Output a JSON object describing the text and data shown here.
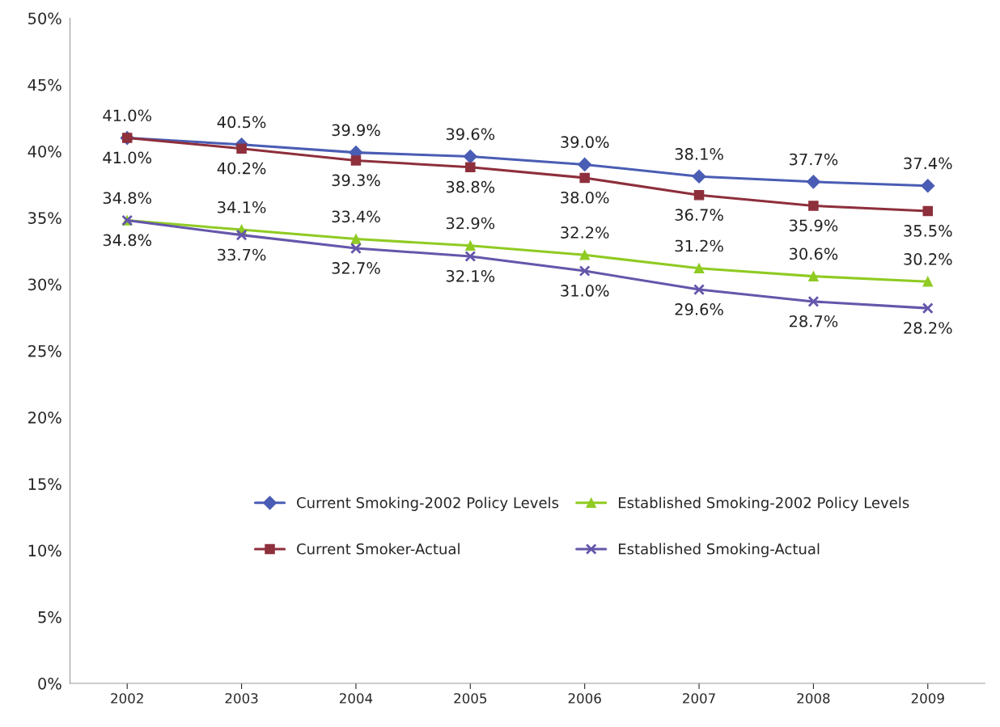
{
  "chart_data": {
    "type": "line",
    "categories": [
      "2002",
      "2003",
      "2004",
      "2005",
      "2006",
      "2007",
      "2008",
      "2009"
    ],
    "series": [
      {
        "name": "Current Smoking-2002 Policy Levels",
        "color": "#4a5db4",
        "marker": "diamond",
        "values": [
          41.0,
          40.5,
          39.9,
          39.6,
          39.0,
          38.1,
          37.7,
          37.4
        ],
        "value_labels": [
          "41.0%",
          "40.5%",
          "39.9%",
          "39.6%",
          "39.0%",
          "38.1%",
          "37.7%",
          "37.4%"
        ]
      },
      {
        "name": "Current Smoker-Actual",
        "color": "#8e2f3c",
        "marker": "square",
        "values": [
          41.0,
          40.2,
          39.3,
          38.8,
          38.0,
          36.7,
          35.9,
          35.5
        ],
        "value_labels": [
          "41.0%",
          "40.2%",
          "39.3%",
          "38.8%",
          "38.0%",
          "36.7%",
          "35.9%",
          "35.5%"
        ]
      },
      {
        "name": "Established Smoking-2002 Policy Levels",
        "color": "#8fcb22",
        "marker": "triangle",
        "values": [
          34.8,
          34.1,
          33.4,
          32.9,
          32.2,
          31.2,
          30.6,
          30.2
        ],
        "value_labels": [
          "34.8%",
          "34.1%",
          "33.4%",
          "32.9%",
          "32.2%",
          "31.2%",
          "30.6%",
          "30.2%"
        ]
      },
      {
        "name": "Established Smoking-Actual",
        "color": "#6556ab",
        "marker": "cross",
        "values": [
          34.8,
          33.7,
          32.7,
          32.1,
          31.0,
          29.6,
          28.7,
          28.2
        ],
        "value_labels": [
          "34.8%",
          "33.7%",
          "32.7%",
          "32.1%",
          "31.0%",
          "29.6%",
          "28.7%",
          "28.2%"
        ]
      }
    ],
    "ylim": [
      0,
      50
    ],
    "yticks": [
      {
        "value": 0,
        "label": "0%"
      },
      {
        "value": 5,
        "label": "5%"
      },
      {
        "value": 10,
        "label": "10%"
      },
      {
        "value": 15,
        "label": "15%"
      },
      {
        "value": 20,
        "label": "20%"
      },
      {
        "value": 25,
        "label": "25%"
      },
      {
        "value": 30,
        "label": "30%"
      },
      {
        "value": 35,
        "label": "35%"
      },
      {
        "value": 40,
        "label": "40%"
      },
      {
        "value": 45,
        "label": "45%"
      },
      {
        "value": 50,
        "label": "50%"
      }
    ],
    "grid": false,
    "legend": "bottom",
    "line_style": "solid"
  }
}
